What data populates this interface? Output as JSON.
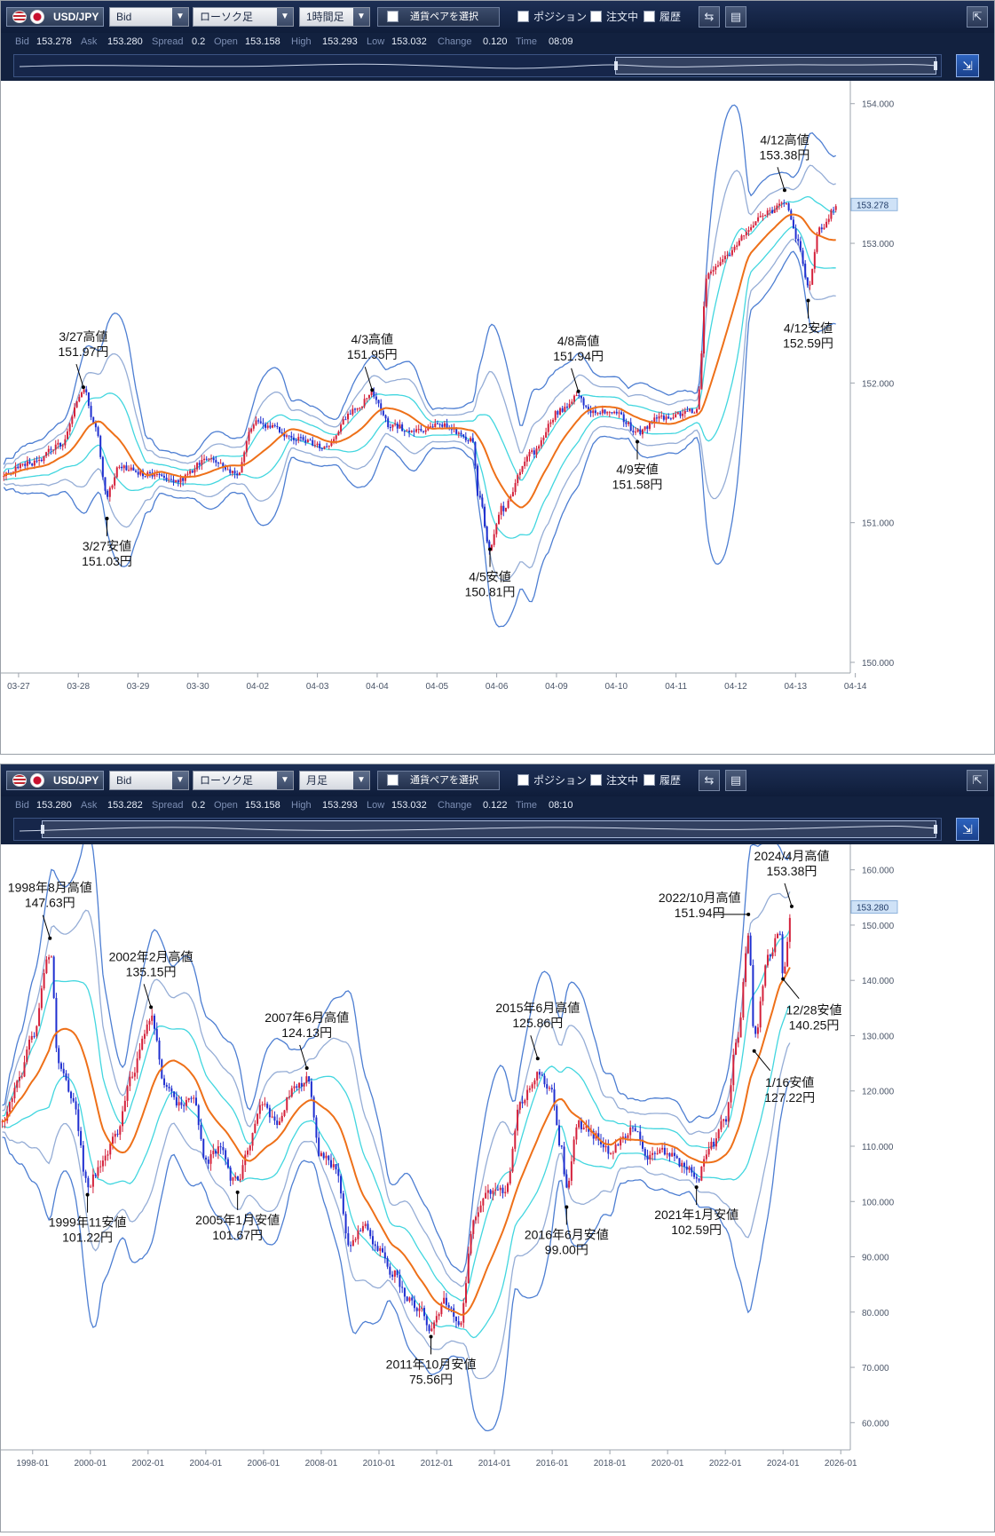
{
  "panels": [
    {
      "toolbar": {
        "symbol": "USD/JPY",
        "price_type": "Bid",
        "chart_style": "ローソク足",
        "timeframe": "1時間足",
        "pair_select": "通貨ペアを選択",
        "position": "ポジション",
        "orders": "注文中",
        "history": "履歴",
        "icons": [
          "chart-settings-icon",
          "window-icon",
          "collapse-icon",
          "expand-icon"
        ]
      },
      "info": {
        "bid_label": "Bid",
        "bid": "153.278",
        "ask_label": "Ask",
        "ask": "153.280",
        "spread_label": "Spread",
        "spread": "0.2",
        "open_label": "Open",
        "open": "153.158",
        "high_label": "High",
        "high": "153.293",
        "low_label": "Low",
        "low": "153.032",
        "change_label": "Change",
        "change": "0.120",
        "time_label": "Time",
        "time": "08:09"
      },
      "navigator": {
        "selection_from": 0.64,
        "selection_to": 0.985
      }
    },
    {
      "toolbar": {
        "symbol": "USD/JPY",
        "price_type": "Bid",
        "chart_style": "ローソク足",
        "timeframe": "月足",
        "pair_select": "通貨ペアを選択",
        "position": "ポジション",
        "orders": "注文中",
        "history": "履歴",
        "icons": [
          "chart-settings-icon",
          "window-icon",
          "collapse-icon",
          "expand-icon"
        ]
      },
      "info": {
        "bid_label": "Bid",
        "bid": "153.280",
        "ask_label": "Ask",
        "ask": "153.282",
        "spread_label": "Spread",
        "spread": "0.2",
        "open_label": "Open",
        "open": "153.158",
        "high_label": "High",
        "high": "153.293",
        "low_label": "Low",
        "low": "153.032",
        "change_label": "Change",
        "change": "0.122",
        "time_label": "Time",
        "time": "08:10"
      },
      "navigator": {
        "selection_from": 0.03,
        "selection_to": 0.985
      }
    }
  ],
  "chart_data": [
    {
      "type": "candlestick",
      "timeframe": "1時間足",
      "x_ticks": [
        "03-27",
        "03-28",
        "03-29",
        "03-30",
        "04-02",
        "04-03",
        "04-04",
        "04-05",
        "04-06",
        "04-09",
        "04-10",
        "04-11",
        "04-12",
        "04-13",
        "04-14"
      ],
      "y_ticks": [
        "150.000",
        "151.000",
        "152.000",
        "153.000",
        "154.000"
      ],
      "ylim": [
        150.0,
        154.1
      ],
      "current_price_label": "153.278",
      "current_price": 153.278,
      "close_path": [
        [
          0,
          151.35
        ],
        [
          0.5,
          151.42
        ],
        [
          1,
          151.55
        ],
        [
          1.4,
          151.95
        ],
        [
          1.6,
          151.7
        ],
        [
          1.8,
          151.2
        ],
        [
          2,
          151.4
        ],
        [
          2.5,
          151.35
        ],
        [
          3,
          151.3
        ],
        [
          3.5,
          151.45
        ],
        [
          4,
          151.35
        ],
        [
          4.3,
          151.72
        ],
        [
          4.6,
          151.68
        ],
        [
          5,
          151.6
        ],
        [
          5.5,
          151.55
        ],
        [
          6,
          151.8
        ],
        [
          6.3,
          151.92
        ],
        [
          6.6,
          151.7
        ],
        [
          7,
          151.65
        ],
        [
          7.5,
          151.7
        ],
        [
          8,
          151.6
        ],
        [
          8.1,
          151.2
        ],
        [
          8.3,
          150.82
        ],
        [
          8.5,
          151.1
        ],
        [
          9,
          151.5
        ],
        [
          9.5,
          151.8
        ],
        [
          9.8,
          151.92
        ],
        [
          10,
          151.78
        ],
        [
          10.4,
          151.8
        ],
        [
          10.8,
          151.65
        ],
        [
          11.2,
          151.75
        ],
        [
          11.8,
          151.8
        ],
        [
          12,
          152.8
        ],
        [
          12.3,
          152.9
        ],
        [
          12.6,
          153.05
        ],
        [
          12.9,
          153.2
        ],
        [
          13.3,
          153.28
        ],
        [
          13.5,
          153.05
        ],
        [
          13.7,
          152.7
        ],
        [
          13.9,
          153.1
        ],
        [
          14.2,
          153.28
        ]
      ],
      "annotations": [
        {
          "label": "3/27高値",
          "value": "151.97円",
          "x": 1.4,
          "y": 151.97,
          "dir": "up"
        },
        {
          "label": "3/27安値",
          "value": "151.03円",
          "x": 1.8,
          "y": 151.03,
          "dir": "down"
        },
        {
          "label": "4/3高値",
          "value": "151.95円",
          "x": 6.3,
          "y": 151.95,
          "dir": "up"
        },
        {
          "label": "4/5安値",
          "value": "150.81円",
          "x": 8.3,
          "y": 150.81,
          "dir": "down"
        },
        {
          "label": "4/8高値",
          "value": "151.94円",
          "x": 9.8,
          "y": 151.94,
          "dir": "up"
        },
        {
          "label": "4/9安値",
          "value": "151.58円",
          "x": 10.8,
          "y": 151.58,
          "dir": "down"
        },
        {
          "label": "4/12高値",
          "value": "153.38円",
          "x": 13.3,
          "y": 153.38,
          "dir": "up"
        },
        {
          "label": "4/12安値",
          "value": "152.59円",
          "x": 13.7,
          "y": 152.59,
          "dir": "down"
        }
      ]
    },
    {
      "type": "candlestick",
      "timeframe": "月足",
      "x_ticks": [
        "1998-01",
        "2000-01",
        "2002-01",
        "2004-01",
        "2006-01",
        "2008-01",
        "2010-01",
        "2012-01",
        "2014-01",
        "2016-01",
        "2018-01",
        "2020-01",
        "2022-01",
        "2024-01",
        "2026-01"
      ],
      "y_ticks": [
        "60.000",
        "70.000",
        "80.000",
        "90.000",
        "100.000",
        "110.000",
        "120.000",
        "130.000",
        "140.000",
        "150.000",
        "160.000"
      ],
      "ylim": [
        57,
        163
      ],
      "current_price_label": "153.280",
      "current_price": 153.28,
      "close_path": [
        [
          1997.0,
          115
        ],
        [
          1997.5,
          122
        ],
        [
          1998.0,
          130
        ],
        [
          1998.6,
          145
        ],
        [
          1998.9,
          125
        ],
        [
          1999.4,
          118
        ],
        [
          1999.9,
          103
        ],
        [
          2000.4,
          107
        ],
        [
          2000.9,
          112
        ],
        [
          2001.4,
          122
        ],
        [
          2001.9,
          131
        ],
        [
          2002.1,
          133
        ],
        [
          2002.6,
          121
        ],
        [
          2003.0,
          118
        ],
        [
          2003.6,
          118
        ],
        [
          2004.0,
          107
        ],
        [
          2004.5,
          110
        ],
        [
          2004.9,
          104
        ],
        [
          2005.1,
          104
        ],
        [
          2005.5,
          110
        ],
        [
          2005.9,
          118
        ],
        [
          2006.5,
          114
        ],
        [
          2007.0,
          120
        ],
        [
          2007.5,
          122
        ],
        [
          2008.0,
          108
        ],
        [
          2008.5,
          106
        ],
        [
          2009.0,
          92
        ],
        [
          2009.5,
          96
        ],
        [
          2010.0,
          91
        ],
        [
          2010.5,
          87
        ],
        [
          2011.0,
          82
        ],
        [
          2011.5,
          80
        ],
        [
          2011.8,
          77
        ],
        [
          2012.3,
          82
        ],
        [
          2012.8,
          78
        ],
        [
          2013.3,
          97
        ],
        [
          2013.8,
          102
        ],
        [
          2014.4,
          102
        ],
        [
          2014.9,
          118
        ],
        [
          2015.5,
          123
        ],
        [
          2015.9,
          121
        ],
        [
          2016.3,
          110
        ],
        [
          2016.5,
          102
        ],
        [
          2016.9,
          114
        ],
        [
          2017.5,
          112
        ],
        [
          2018.0,
          109
        ],
        [
          2018.8,
          113
        ],
        [
          2019.4,
          108
        ],
        [
          2019.9,
          109
        ],
        [
          2020.5,
          107
        ],
        [
          2021.0,
          104
        ],
        [
          2021.5,
          110
        ],
        [
          2022.0,
          115
        ],
        [
          2022.4,
          129
        ],
        [
          2022.8,
          148
        ],
        [
          2023.0,
          130
        ],
        [
          2023.5,
          144
        ],
        [
          2023.9,
          149
        ],
        [
          2024.0,
          141
        ],
        [
          2024.3,
          153
        ]
      ],
      "annotations": [
        {
          "label": "1998年8月高値",
          "value": "147.63円",
          "x": 1998.6,
          "y": 147.63,
          "dir": "up"
        },
        {
          "label": "1999年11安値",
          "value": "101.22円",
          "x": 1999.9,
          "y": 101.22,
          "dir": "down"
        },
        {
          "label": "2002年2月高値",
          "value": "135.15円",
          "x": 2002.1,
          "y": 135.15,
          "dir": "up"
        },
        {
          "label": "2005年1月安値",
          "value": "101.67円",
          "x": 2005.1,
          "y": 101.67,
          "dir": "down"
        },
        {
          "label": "2007年6月高値",
          "value": "124.13円",
          "x": 2007.5,
          "y": 124.13,
          "dir": "up"
        },
        {
          "label": "2011年10月安値",
          "value": "75.56円",
          "x": 2011.8,
          "y": 75.56,
          "dir": "down"
        },
        {
          "label": "2015年6月高値",
          "value": "125.86円",
          "x": 2015.5,
          "y": 125.86,
          "dir": "up"
        },
        {
          "label": "2016年6月安値",
          "value": "99.00円",
          "x": 2016.5,
          "y": 99.0,
          "dir": "down"
        },
        {
          "label": "2021年1月安値",
          "value": "102.59円",
          "x": 2021.0,
          "y": 102.59,
          "dir": "down"
        },
        {
          "label": "2022/10月高値",
          "value": "151.94円",
          "x": 2022.8,
          "y": 151.94,
          "dir": "left"
        },
        {
          "label": "1/16安値",
          "value": "127.22円",
          "x": 2023.0,
          "y": 127.22,
          "dir": "down-right"
        },
        {
          "label": "12/28安値",
          "value": "140.25円",
          "x": 2024.0,
          "y": 140.25,
          "dir": "down-right"
        },
        {
          "label": "2024/4月高値",
          "value": "153.38円",
          "x": 2024.3,
          "y": 153.38,
          "dir": "up"
        }
      ]
    }
  ],
  "colors": {
    "bull": "#d4213b",
    "bear": "#1f2fd0",
    "ma": "#ee7019",
    "band_inner": "#42d6df",
    "band_mid": "#95add6",
    "band_outer": "#4d7ed2",
    "price_tag": "#cfe2f7"
  }
}
